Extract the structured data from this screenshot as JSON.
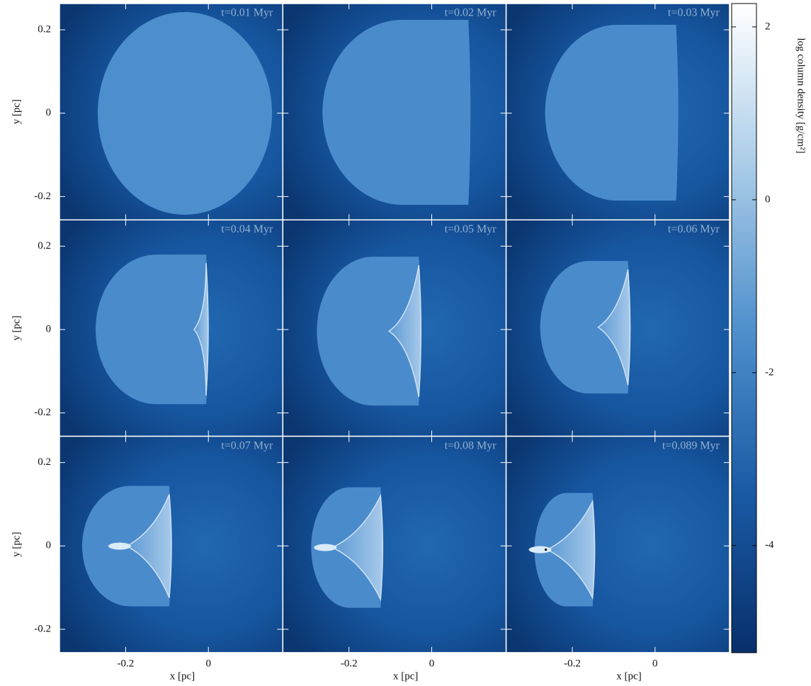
{
  "chart_data": {
    "type": "image-grid",
    "panels": [
      "t=0.01 Myr",
      "t=0.02 Myr",
      "t=0.03 Myr",
      "t=0.04 Myr",
      "t=0.05 Myr",
      "t=0.06 Myr",
      "t=0.07 Myr",
      "t=0.08 Myr",
      "t=0.089 Myr"
    ],
    "xlabel": "x [pc]",
    "ylabel": "y [pc]",
    "xlim": [
      -0.36,
      0.18
    ],
    "ylim": [
      -0.256,
      0.263
    ],
    "xticks": [
      -0.2,
      0
    ],
    "yticks": [
      -0.2,
      0,
      0.2
    ],
    "colorbar_label": "log column density [g/cm²]",
    "clim": [
      -5.24,
      2.27
    ],
    "cticks": [
      -4,
      -2,
      0,
      2
    ],
    "colors": [
      "#08306b",
      "#1a5ba6",
      "#4f90cc",
      "#a9cce8",
      "#ffffff"
    ]
  }
}
